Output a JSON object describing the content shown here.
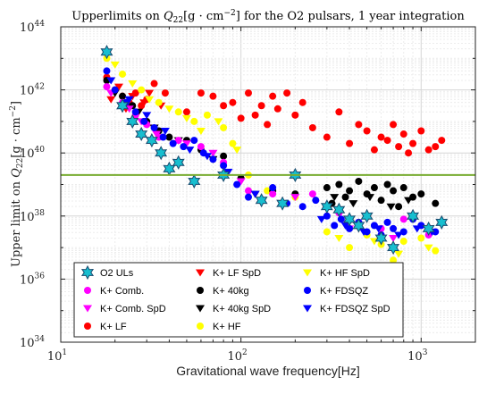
{
  "chart_data": {
    "type": "scatter",
    "title": "Upperlimits on Q22[g·cm^-2] for the O2 pulsars, 1 year integration",
    "title_parts": {
      "pre": "Upperlimits on ",
      "q": "Q",
      "sub": "22",
      "unit": "[g · cm",
      "exp": "−2",
      "post": "] for the O2 pulsars, 1 year integration"
    },
    "xlabel": "Gravitational wave frequency[Hz]",
    "ylabel": "Upper limit on Q22[g·cm^-2]",
    "ylabel_parts": {
      "pre": "Upper limit on ",
      "q": "Q",
      "sub": "22",
      "unit": "[g · cm",
      "exp": "−2",
      "post": "]"
    },
    "x_scale": "log",
    "y_scale": "log",
    "xlim": [
      10,
      2000
    ],
    "ylim": [
      1e+34,
      1e+44
    ],
    "x_ticks": [
      {
        "base": "10",
        "exp": "1",
        "value": 10
      },
      {
        "base": "10",
        "exp": "2",
        "value": 100
      },
      {
        "base": "10",
        "exp": "3",
        "value": 1000
      }
    ],
    "y_ticks": [
      {
        "base": "10",
        "exp": "34",
        "value": 34
      },
      {
        "base": "10",
        "exp": "36",
        "value": 36
      },
      {
        "base": "10",
        "exp": "38",
        "value": 38
      },
      {
        "base": "10",
        "exp": "40",
        "value": 40
      },
      {
        "base": "10",
        "exp": "42",
        "value": 42
      },
      {
        "base": "10",
        "exp": "44",
        "value": 44
      }
    ],
    "grid": true,
    "legend_position": "bottom-left",
    "reference_line": {
      "y": 2e+39,
      "color": "#77AC30"
    },
    "series": [
      {
        "name": "O2 ULs",
        "marker": "hexagram",
        "color": "#17BECF",
        "x": [
          18,
          22,
          25,
          28,
          32,
          36,
          40,
          45,
          55,
          80,
          130,
          170,
          200,
          300,
          350,
          400,
          450,
          500,
          600,
          700,
          900,
          1100,
          1300
        ],
        "log_y": [
          43.2,
          41.5,
          41.0,
          40.6,
          40.4,
          40.0,
          39.5,
          39.7,
          39.1,
          39.3,
          38.5,
          38.4,
          39.3,
          38.3,
          38.2,
          37.9,
          37.7,
          38.0,
          37.3,
          37.0,
          38.0,
          37.6,
          37.8
        ]
      },
      {
        "name": "K+ Comb.",
        "marker": "circle",
        "color": "#FF00FF",
        "x": [
          18,
          22,
          26,
          30,
          35,
          45,
          60,
          80,
          110,
          150,
          250,
          350,
          450,
          600,
          800,
          1100
        ],
        "log_y": [
          42.1,
          41.6,
          41.2,
          40.9,
          40.5,
          40.4,
          40.2,
          39.7,
          38.8,
          38.7,
          38.7,
          38.1,
          37.8,
          37.6,
          37.9,
          37.4
        ]
      },
      {
        "name": "K+ Comb. SpD",
        "marker": "triangle-down",
        "color": "#FF00FF",
        "x": [
          19,
          24,
          28,
          34,
          50,
          70,
          100,
          200,
          400,
          700
        ],
        "log_y": [
          41.9,
          41.4,
          41.0,
          40.6,
          40.3,
          40.0,
          39.1,
          38.6,
          37.6,
          37.3
        ]
      },
      {
        "name": "K+ LF",
        "marker": "circle",
        "color": "#FF0000",
        "x": [
          18,
          20,
          22,
          24,
          26,
          28,
          30,
          33,
          38,
          50,
          60,
          70,
          80,
          90,
          100,
          110,
          120,
          130,
          140,
          150,
          160,
          180,
          200,
          220,
          250,
          300,
          350,
          400,
          450,
          500,
          550,
          600,
          650,
          700,
          750,
          800,
          850,
          900,
          1000,
          1100,
          1200,
          1300
        ],
        "log_y": [
          42.4,
          42.0,
          41.8,
          41.6,
          41.9,
          41.5,
          41.7,
          42.2,
          41.9,
          41.3,
          41.9,
          41.8,
          41.5,
          41.6,
          41.1,
          41.9,
          41.2,
          41.5,
          40.9,
          41.8,
          41.4,
          41.9,
          41.2,
          41.6,
          40.8,
          40.5,
          41.3,
          40.3,
          40.9,
          40.7,
          40.1,
          40.5,
          40.4,
          40.9,
          40.2,
          40.6,
          40.0,
          40.3,
          40.7,
          40.1,
          40.2,
          40.4
        ]
      },
      {
        "name": "K+ LF SpD",
        "marker": "triangle-down",
        "color": "#FF0000",
        "x": [
          19,
          21,
          23,
          25,
          27,
          29,
          31,
          36
        ],
        "log_y": [
          41.7,
          42.1,
          41.4,
          41.8,
          41.3,
          41.6,
          41.9,
          41.5
        ]
      },
      {
        "name": "K+ 40kg",
        "marker": "circle",
        "color": "#000000",
        "x": [
          18,
          22,
          25,
          30,
          35,
          40,
          50,
          60,
          80,
          100,
          150,
          200,
          300,
          320,
          350,
          380,
          400,
          450,
          500,
          550,
          600,
          650,
          700,
          750,
          800,
          900,
          1000,
          1200
        ],
        "log_y": [
          42.3,
          41.8,
          41.5,
          41.0,
          40.7,
          40.5,
          40.4,
          40.1,
          39.9,
          39.2,
          38.8,
          38.7,
          38.9,
          38.4,
          39.0,
          38.6,
          38.8,
          39.1,
          38.7,
          38.9,
          38.5,
          39.0,
          38.8,
          38.3,
          38.9,
          38.6,
          38.7,
          38.4
        ]
      },
      {
        "name": "K+ 40kg SpD",
        "marker": "triangle-down",
        "color": "#000000",
        "x": [
          20,
          27,
          33,
          45,
          70,
          120,
          330,
          420,
          520,
          680,
          850
        ],
        "log_y": [
          41.9,
          41.3,
          40.8,
          40.4,
          39.8,
          38.7,
          38.6,
          38.4,
          38.6,
          38.3,
          38.5
        ]
      },
      {
        "name": "K+ HF",
        "marker": "circle",
        "color": "#FFFF00",
        "x": [
          18,
          22,
          28,
          35,
          45,
          55,
          65,
          80,
          90,
          110,
          140,
          200,
          300,
          400,
          500,
          600,
          700,
          800,
          1000,
          1200
        ],
        "log_y": [
          43.0,
          42.5,
          42.0,
          41.6,
          41.3,
          41.0,
          41.2,
          40.8,
          40.3,
          39.3,
          38.8,
          38.6,
          37.5,
          37.0,
          37.4,
          37.1,
          36.6,
          37.2,
          37.3,
          36.9
        ]
      },
      {
        "name": "K+ HF SpD",
        "marker": "triangle-down",
        "color": "#FFFF00",
        "x": [
          20,
          25,
          31,
          40,
          50,
          60,
          75,
          95,
          350,
          550,
          750,
          1100
        ],
        "log_y": [
          42.8,
          42.2,
          41.7,
          41.4,
          41.1,
          40.7,
          41.0,
          40.1,
          37.3,
          37.2,
          36.8,
          37.0
        ]
      },
      {
        "name": "K+ FDSQZ",
        "marker": "circle",
        "color": "#0000FF",
        "x": [
          18,
          20,
          23,
          26,
          29,
          33,
          37,
          42,
          48,
          55,
          62,
          70,
          80,
          95,
          110,
          130,
          150,
          180,
          220,
          260,
          300,
          330,
          360,
          400,
          450,
          500,
          550,
          600,
          650,
          700,
          800,
          900,
          1000,
          1100,
          1200
        ],
        "log_y": [
          42.6,
          42.0,
          41.6,
          41.3,
          41.0,
          40.8,
          40.5,
          40.3,
          40.2,
          40.4,
          40.0,
          39.8,
          39.6,
          39.0,
          38.6,
          38.5,
          38.9,
          38.4,
          38.3,
          38.5,
          38.0,
          37.7,
          37.9,
          37.6,
          37.8,
          37.5,
          37.7,
          37.4,
          37.8,
          37.6,
          37.5,
          37.9,
          37.7,
          37.6,
          37.5
        ]
      },
      {
        "name": "K+ FDSQZ SpD",
        "marker": "triangle-down",
        "color": "#0000FF",
        "x": [
          19,
          24,
          30,
          38,
          52,
          65,
          85,
          120,
          170,
          280,
          380,
          480,
          580,
          750,
          950,
          1150
        ],
        "log_y": [
          42.3,
          41.7,
          41.2,
          40.7,
          40.1,
          39.9,
          39.4,
          38.7,
          38.4,
          37.9,
          37.7,
          37.5,
          37.6,
          37.4,
          37.6,
          37.5
        ]
      }
    ]
  }
}
